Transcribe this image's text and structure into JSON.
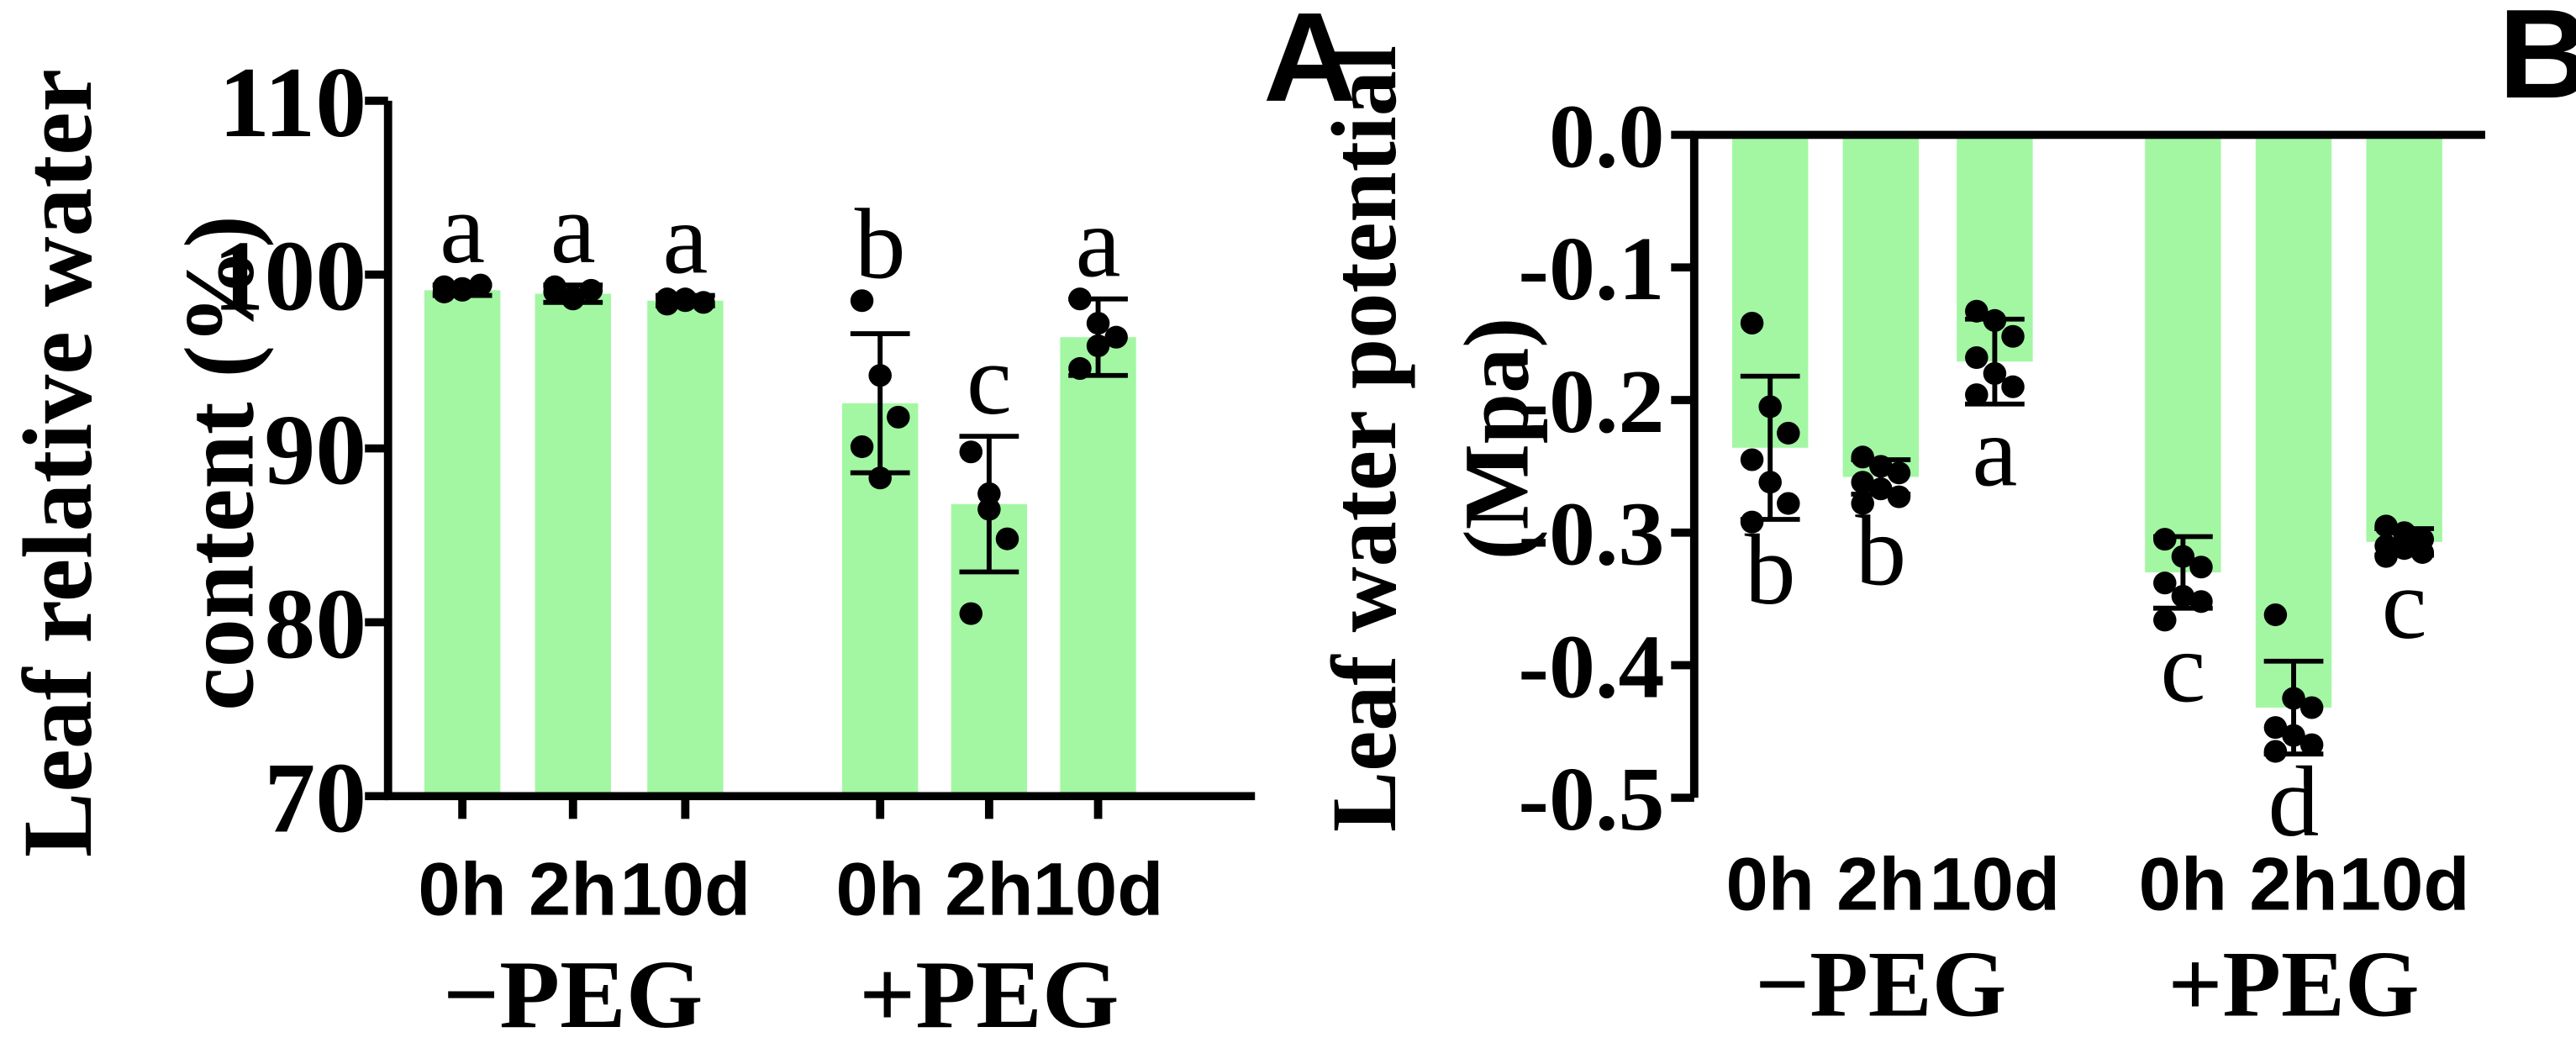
{
  "chart_data": [
    {
      "type": "bar",
      "panel_label": "A",
      "ylabel_lines": [
        "Leaf relative water",
        "content (%)"
      ],
      "ylim": [
        70,
        110
      ],
      "yticks": [
        70,
        80,
        90,
        100,
        110
      ],
      "ytick_labels": [
        "70",
        "80",
        "90",
        "100",
        "110"
      ],
      "bar_color": "#a3f7a3",
      "groups": [
        {
          "label": "−PEG",
          "categories": [
            "0h",
            "2h",
            "10d"
          ]
        },
        {
          "label": "+PEG",
          "categories": [
            "0h",
            "2h",
            "10d"
          ]
        }
      ],
      "bars": [
        {
          "group": 0,
          "category": "0h",
          "mean": 99.1,
          "sd": 0.3,
          "letter": "a",
          "letter_pos": "above",
          "points": [
            99.0,
            99.2,
            99.4,
            99.3,
            99.1
          ]
        },
        {
          "group": 0,
          "category": "2h",
          "mean": 98.9,
          "sd": 0.5,
          "letter": "a",
          "letter_pos": "above",
          "points": [
            99.3,
            98.6,
            99.1,
            99.0,
            98.7
          ]
        },
        {
          "group": 0,
          "category": "10d",
          "mean": 98.5,
          "sd": 0.3,
          "letter": "a",
          "letter_pos": "above",
          "points": [
            98.6,
            98.5,
            98.4,
            98.3,
            98.6
          ]
        },
        {
          "group": 1,
          "category": "0h",
          "mean": 92.6,
          "sd": 4.0,
          "letter": "b",
          "letter_pos": "above",
          "points": [
            98.5,
            94.2,
            91.8,
            90.1,
            88.3
          ]
        },
        {
          "group": 1,
          "category": "2h",
          "mean": 86.8,
          "sd": 3.9,
          "letter": "c",
          "letter_pos": "above",
          "points": [
            89.8,
            87.4,
            84.8,
            80.5,
            86.5
          ]
        },
        {
          "group": 1,
          "category": "10d",
          "mean": 96.4,
          "sd": 2.2,
          "letter": "a",
          "letter_pos": "above",
          "points": [
            98.6,
            97.2,
            96.4,
            94.6,
            95.9
          ]
        }
      ]
    },
    {
      "type": "bar",
      "panel_label": "B",
      "ylabel_lines": [
        "Leaf water potential",
        "(Mpa)"
      ],
      "ylim": [
        -0.5,
        0.0
      ],
      "yticks": [
        0.0,
        -0.1,
        -0.2,
        -0.3,
        -0.4,
        -0.5
      ],
      "ytick_labels": [
        "0.0",
        "-0.1",
        "-0.2",
        "-0.3",
        "-0.4",
        "-0.5"
      ],
      "bar_color": "#a3f7a3",
      "groups": [
        {
          "label": "−PEG",
          "categories": [
            "0h",
            "2h",
            "10d"
          ]
        },
        {
          "label": "+PEG",
          "categories": [
            "0h",
            "2h",
            "10d"
          ]
        }
      ],
      "bars": [
        {
          "group": 0,
          "category": "0h",
          "mean": -0.236,
          "sd": 0.054,
          "letter": "b",
          "letter_pos": "below",
          "points": [
            -0.142,
            -0.205,
            -0.225,
            -0.245,
            -0.262,
            -0.278,
            -0.292
          ]
        },
        {
          "group": 0,
          "category": "2h",
          "mean": -0.258,
          "sd": 0.013,
          "letter": "b",
          "letter_pos": "below",
          "points": [
            -0.243,
            -0.25,
            -0.255,
            -0.262,
            -0.267,
            -0.273,
            -0.278
          ]
        },
        {
          "group": 0,
          "category": "10d",
          "mean": -0.171,
          "sd": 0.032,
          "letter": "a",
          "letter_pos": "below",
          "points": [
            -0.133,
            -0.14,
            -0.152,
            -0.168,
            -0.18,
            -0.19,
            -0.196
          ]
        },
        {
          "group": 1,
          "category": "0h",
          "mean": -0.33,
          "sd": 0.027,
          "letter": "c",
          "letter_pos": "below",
          "points": [
            -0.305,
            -0.318,
            -0.326,
            -0.338,
            -0.348,
            -0.352,
            -0.366
          ]
        },
        {
          "group": 1,
          "category": "2h",
          "mean": -0.432,
          "sd": 0.035,
          "letter": "d",
          "letter_pos": "below",
          "points": [
            -0.362,
            -0.425,
            -0.432,
            -0.447,
            -0.453,
            -0.46,
            -0.465
          ]
        },
        {
          "group": 1,
          "category": "10d",
          "mean": -0.307,
          "sd": 0.01,
          "letter": "c",
          "letter_pos": "below",
          "points": [
            -0.295,
            -0.3,
            -0.305,
            -0.31,
            -0.312,
            -0.315,
            -0.318
          ]
        }
      ]
    }
  ]
}
